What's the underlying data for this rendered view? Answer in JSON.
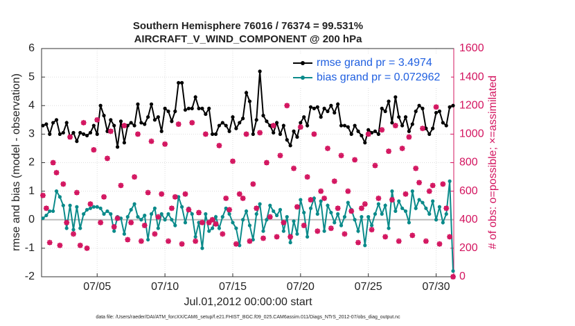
{
  "chart_data": {
    "type": "line",
    "title": [
      "Southern Hemisphere 76016 / 76374 = 99.531%",
      "AIRCRAFT_V_WIND_COMPONENT @ 200 hPa"
    ],
    "xlabel": "Jul.01,2012 00:00:00 start",
    "ylabel": "rmse and bias (model - observation)",
    "y2label": "# of obs: o=possible; ×=assimilated",
    "footnote": "data file: /Users/raeder/DAI/ATM_forcXX/CAM6_setup/f.e21.FHIST_BGC.f09_025.CAM6assim.011/Diags_NTrS_2012-07/obs_diag_output.nc",
    "x": [
      0,
      0.25,
      0.5,
      0.75,
      1,
      1.25,
      1.5,
      1.75,
      2,
      2.25,
      2.5,
      2.75,
      3,
      3.25,
      3.5,
      3.75,
      4,
      4.25,
      4.5,
      4.75,
      5,
      5.25,
      5.5,
      5.75,
      6,
      6.25,
      6.5,
      6.75,
      7,
      7.25,
      7.5,
      7.75,
      8,
      8.25,
      8.5,
      8.75,
      9,
      9.25,
      9.5,
      9.75,
      10,
      10.25,
      10.5,
      10.75,
      11,
      11.25,
      11.5,
      11.75,
      12,
      12.25,
      12.5,
      12.75,
      13,
      13.25,
      13.5,
      13.75,
      14,
      14.25,
      14.5,
      14.75,
      15,
      15.25,
      15.5,
      15.75,
      16,
      16.25,
      16.5,
      16.75,
      17,
      17.25,
      17.5,
      17.75,
      18,
      18.25,
      18.5,
      18.75,
      19,
      19.25,
      19.5,
      19.75,
      20,
      20.25,
      20.5,
      20.75,
      21,
      21.25,
      21.5,
      21.75,
      22,
      22.25,
      22.5,
      22.75,
      23,
      23.25,
      23.5,
      23.75,
      24,
      24.25,
      24.5,
      24.75,
      25,
      25.25,
      25.5,
      25.75,
      26,
      26.25,
      26.5,
      26.75,
      27,
      27.25,
      27.5,
      27.75,
      28,
      28.25,
      28.5,
      28.75,
      29,
      29.25,
      29.5,
      29.75,
      30,
      30.25
    ],
    "xlim": [
      -0.1,
      30.3
    ],
    "xticks": [
      {
        "value": 4,
        "label": "07/05"
      },
      {
        "value": 9,
        "label": "07/10"
      },
      {
        "value": 14,
        "label": "07/15"
      },
      {
        "value": 19,
        "label": "07/20"
      },
      {
        "value": 24,
        "label": "07/25"
      },
      {
        "value": 29,
        "label": "07/30"
      }
    ],
    "ylim": [
      -2,
      6
    ],
    "yticks": [
      -2,
      -1,
      0,
      1,
      2,
      3,
      4,
      5,
      6
    ],
    "y2lim": [
      0,
      1600
    ],
    "y2ticks": [
      0,
      200,
      400,
      600,
      800,
      1000,
      1200,
      1400,
      1600
    ],
    "grid": true,
    "zero_line_color": "#bbbbbb",
    "legend": "upper right",
    "series": [
      {
        "name": "rmse grand pr = 3.4974",
        "color": "#000000",
        "values": [
          3.3,
          3.35,
          3.0,
          3.4,
          3.5,
          3.0,
          3.05,
          3.4,
          2.9,
          3.05,
          2.75,
          3.05,
          3.0,
          2.95,
          3.05,
          3.3,
          3.0,
          4.0,
          3.65,
          3.1,
          3.5,
          3.3,
          2.55,
          3.45,
          2.7,
          3.3,
          3.4,
          3.3,
          4.05,
          3.4,
          3.35,
          3.6,
          4.05,
          3.5,
          3.6,
          3.1,
          3.9,
          3.8,
          3.45,
          3.8,
          4.8,
          4.8,
          3.85,
          3.9,
          3.9,
          4.3,
          3.9,
          3.9,
          3.7,
          3.9,
          3.0,
          3.0,
          3.3,
          3.4,
          3.3,
          3.1,
          3.6,
          3.2,
          3.4,
          3.55,
          4.45,
          4.15,
          3.0,
          3.5,
          5.2,
          3.65,
          3.45,
          3.3,
          3.05,
          3.4,
          3.0,
          3.3,
          2.8,
          2.6,
          3.1,
          2.9,
          3.4,
          3.6,
          3.3,
          3.95,
          3.9,
          3.95,
          3.6,
          3.9,
          3.8,
          4.0,
          3.75,
          4.05,
          3.3,
          3.3,
          3.25,
          3.0,
          3.3,
          3.1,
          2.95,
          2.7,
          3.15,
          3.05,
          3.1,
          3.0,
          3.9,
          3.8,
          4.15,
          3.4,
          4.3,
          3.6,
          3.3,
          3.6,
          3.1,
          3.35,
          3.8,
          4.0,
          3.9,
          3.2,
          3.0,
          3.2,
          3.75,
          3.8,
          3.4,
          3.3,
          3.95,
          4.0
        ]
      },
      {
        "name": "bias grand pr = 0.072962",
        "color": "#0a8a8a",
        "values": [
          0.05,
          0.15,
          0.3,
          0.3,
          1.0,
          0.8,
          0.5,
          -0.3,
          0.5,
          -0.35,
          0.45,
          -0.3,
          0.2,
          0.35,
          0.4,
          0.45,
          0.45,
          0.4,
          0.2,
          0.3,
          0.2,
          -0.4,
          0.1,
          0.05,
          -0.5,
          0.1,
          0.35,
          0.55,
          0.1,
          0.0,
          0.15,
          -0.7,
          0.2,
          0.4,
          -0.3,
          0.2,
          0.0,
          0.2,
          0.0,
          -0.2,
          0.8,
          0.45,
          -0.1,
          0.4,
          0.2,
          -0.6,
          -0.1,
          -1.0,
          0.2,
          -0.4,
          -0.3,
          0.1,
          -0.3,
          0.1,
          0.4,
          0.2,
          -0.1,
          -0.3,
          -0.9,
          0.0,
          0.3,
          -0.2,
          -0.7,
          0.2,
          0.55,
          -0.4,
          0.0,
          0.5,
          0.3,
          0.15,
          0.35,
          -0.4,
          0.1,
          -0.8,
          -0.05,
          -0.5,
          0.7,
          0.25,
          -0.6,
          0.4,
          0.75,
          0.2,
          0.65,
          -0.4,
          0.5,
          0.25,
          -0.1,
          0.2,
          -0.2,
          0.1,
          0.6,
          0.35,
          0.0,
          -0.4,
          0.1,
          -0.9,
          0.1,
          -0.2,
          0.2,
          0.55,
          0.2,
          0.5,
          -0.3,
          1.0,
          0.3,
          0.65,
          0.4,
          0.3,
          -0.1,
          1.0,
          0.4,
          0.7,
          0.6,
          0.4,
          0.2,
          0.65,
          0.0,
          0.45,
          -0.1,
          0.2,
          1.35,
          -1.8
        ]
      },
      {
        "color": "#d3145f",
        "axis": "y2",
        "mode": "markers",
        "values": [
          570,
          480,
          240,
          800,
          730,
          220,
          650,
          380,
          980,
          300,
          590,
          220,
          1080,
          200,
          510,
          890,
          1100,
          380,
          560,
          830,
          1020,
          350,
          410,
          640,
          1060,
          260,
          380,
          700,
          1000,
          250,
          360,
          590,
          950,
          300,
          420,
          580,
          930,
          250,
          480,
          560,
          1070,
          230,
          580,
          470,
          1080,
          250,
          450,
          380,
          1000,
          380,
          400,
          370,
          920,
          300,
          550,
          470,
          810,
          230,
          580,
          550,
          1000,
          250,
          650,
          480,
          1010,
          270,
          800,
          420,
          1060,
          280,
          850,
          380,
          1200,
          280,
          760,
          490,
          1050,
          360,
          700,
          540,
          1000,
          320,
          600,
          550,
          900,
          340,
          670,
          480,
          850,
          300,
          600,
          460,
          820,
          240,
          480,
          510,
          1000,
          330,
          780,
          550,
          1030,
          280,
          880,
          540,
          1060,
          250,
          900,
          580,
          980,
          290,
          760,
          660,
          1040,
          250,
          600,
          640,
          1190,
          230,
          650,
          480,
          280,
          0
        ]
      }
    ]
  }
}
